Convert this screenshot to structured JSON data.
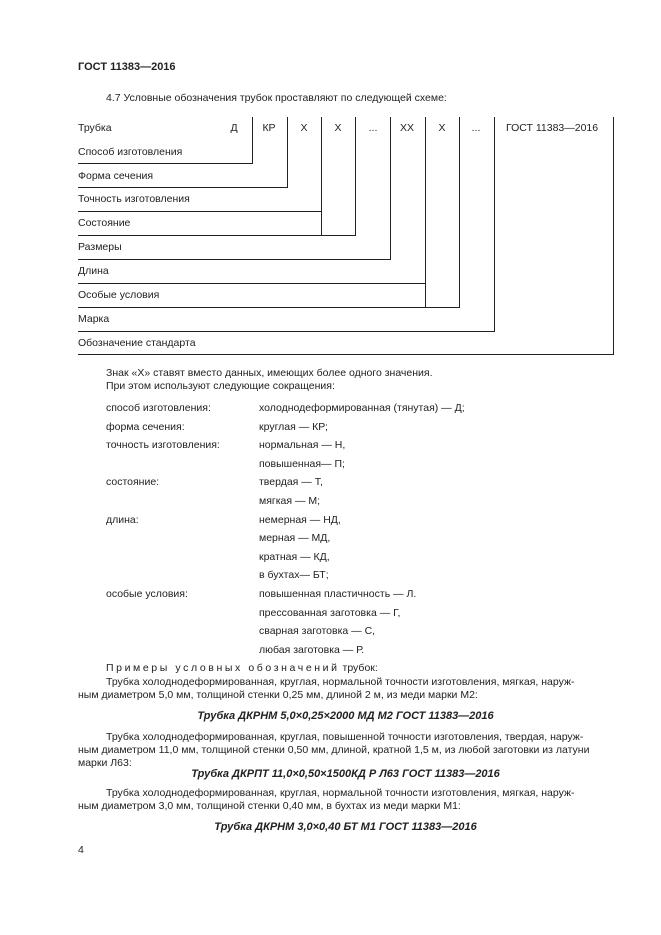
{
  "header": "ГОСТ 11383—2016",
  "intro": "4.7 Условные обозначения трубок проставляют по следующей схеме:",
  "scheme": {
    "cells": [
      "Д",
      "КР",
      "Х",
      "Х",
      "...",
      "ХХ",
      "Х",
      "...",
      "ГОСТ 11383—2016"
    ],
    "rows": [
      "Трубка",
      "Способ изготовления",
      "Форма сечения",
      "Точность изготовления",
      "Состояние",
      "Размеры",
      "Длина",
      "Особые условия",
      "Марка",
      "Обозначение стандарта"
    ]
  },
  "note1": "Знак «Х» ставят вместо данных, имеющих более одного значения.",
  "note2": "При этом используют следующие сокращения:",
  "abbr": [
    {
      "k": "способ изготовления:",
      "v": "холоднодеформированная (тянутая) — Д;"
    },
    {
      "k": "форма сечения:",
      "v": "круглая — КР;"
    },
    {
      "k": "точность изготовления:",
      "v": "нормальная — Н,"
    },
    {
      "k": "",
      "v": "повышенная— П;"
    },
    {
      "k": "состояние:",
      "v": "твердая — Т,"
    },
    {
      "k": "",
      "v": "мягкая — М;"
    },
    {
      "k": "длина:",
      "v": "немерная — НД,"
    },
    {
      "k": "",
      "v": "мерная — МД,"
    },
    {
      "k": "",
      "v": "кратная — КД,"
    },
    {
      "k": "",
      "v": "в бухтах— БТ;"
    },
    {
      "k": "особые условия:",
      "v": "повышенная пластичность — Л."
    },
    {
      "k": "",
      "v": "прессованная заготовка — Г,"
    },
    {
      "k": "",
      "v": "сварная заготовка — С,"
    },
    {
      "k": "",
      "v": "любая заготовка — Р."
    }
  ],
  "examples_title": "Примеры условных обозначений",
  "examples_title_tail": "трубок:",
  "examples": [
    {
      "l1": "Трубка холоднодеформированная, круглая, нормальной точности изготовления, мягкая, наруж-",
      "l2": "ным диаметром 5,0 мм, толщиной стенки 0,25 мм, длиной 2 м, из меди марки М2:",
      "l3": "",
      "code": "Трубка ДКРНМ 5,0×0,25×2000 МД М2 ГОСТ 11383—2016"
    },
    {
      "l1": "Трубка холоднодеформированная, круглая, повышенной точности изготовления, твердая, наруж-",
      "l2": "ным диаметром 11,0 мм, толщиной стенки 0,50 мм, длиной, кратной 1,5 м, из любой заготовки из латуни",
      "l3": "марки Л63:",
      "code": "Трубка ДКРПТ 11,0×0,50×1500КД Р Л63 ГОСТ 11383—2016"
    },
    {
      "l1": "Трубка холоднодеформированная, круглая, нормальной точности изготовления, мягкая, наруж-",
      "l2": "ным диаметром 3,0 мм, толщиной стенки 0,40 мм, в бухтах из меди марки М1:",
      "l3": "",
      "code": "Трубка ДКРНМ 3,0×0,40 БТ М1 ГОСТ 11383—2016"
    }
  ],
  "page_number": "4"
}
